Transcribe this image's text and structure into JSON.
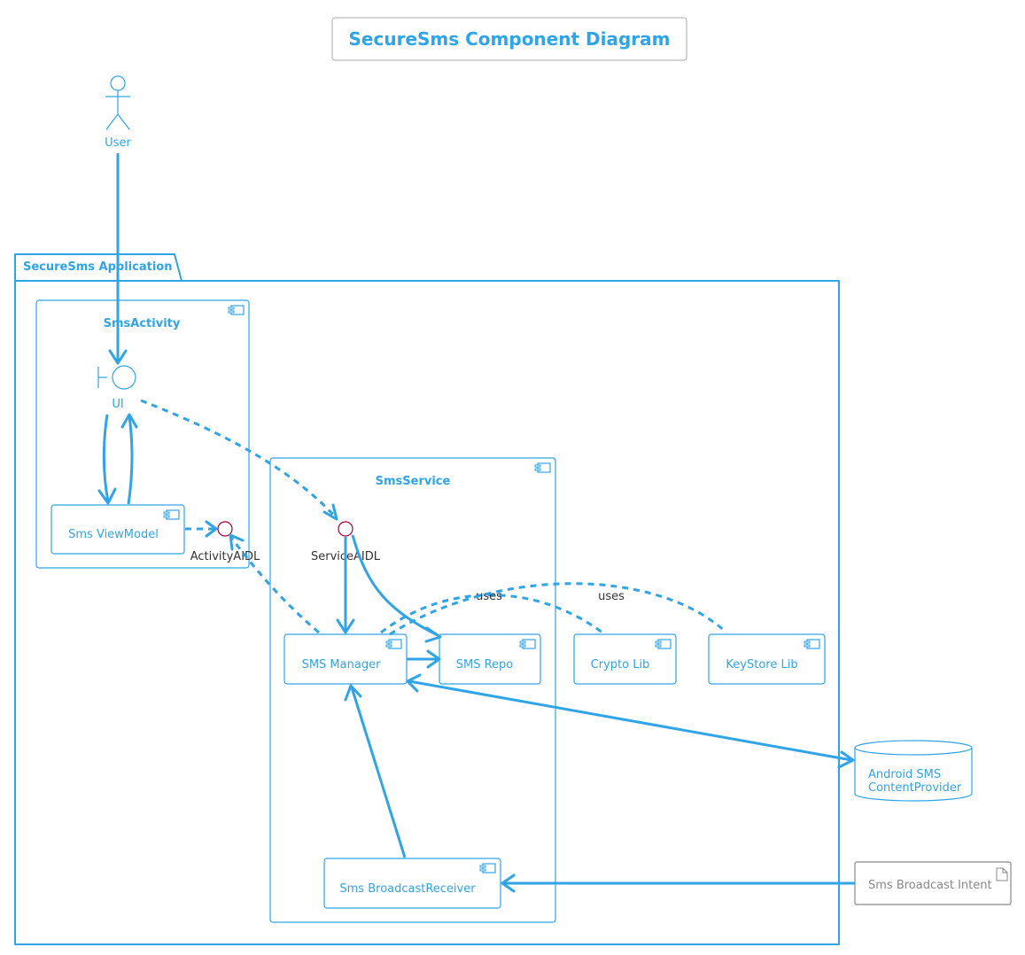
{
  "title": "SecureSms Component Diagram",
  "actor": {
    "label": "User"
  },
  "package": {
    "label": "SecureSms Application"
  },
  "sms_activity": {
    "label": "SmsActivity",
    "ui_label": "UI",
    "viewmodel_label": "Sms ViewModel",
    "interface_label": "ActivityAIDL"
  },
  "sms_service": {
    "label": "SmsService",
    "interface_label": "ServiceAIDL",
    "manager_label": "SMS Manager",
    "repo_label": "SMS Repo",
    "receiver_label": "Sms BroadcastReceiver"
  },
  "libs": {
    "crypto_label": "Crypto Lib",
    "keystore_label": "KeyStore Lib"
  },
  "edge_labels": {
    "uses_crypto": "uses",
    "uses_keystore": "uses"
  },
  "database": {
    "line1": "Android SMS",
    "line2": "ContentProvider"
  },
  "artifact": {
    "label": "Sms Broadcast Intent"
  },
  "colors": {
    "accent": "#2fa4e7",
    "interface_stroke": "#a80036",
    "text_dark": "#333333"
  }
}
